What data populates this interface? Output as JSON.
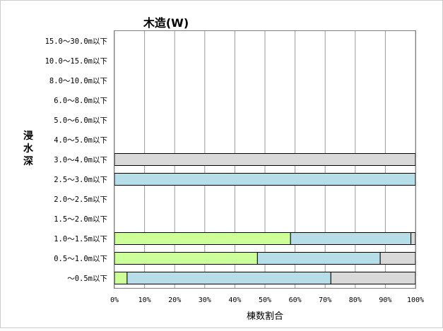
{
  "chart_data": {
    "type": "bar",
    "orientation": "horizontal",
    "stacked": true,
    "title": "木造(W)",
    "ylabel": "浸水深",
    "xlabel": "棟数割合",
    "xlim": [
      0,
      100
    ],
    "x_ticks": [
      "0%",
      "10%",
      "20%",
      "30%",
      "40%",
      "50%",
      "60%",
      "70%",
      "80%",
      "90%",
      "100%"
    ],
    "grid": true,
    "legend": "none",
    "categories": [
      "15.0～30.0m以下",
      "10.0～15.0m以下",
      "8.0～10.0m以下",
      "6.0～8.0m以下",
      "5.0～6.0m以下",
      "4.0～5.0m以下",
      "3.0～4.0m以下",
      "2.5～3.0m以下",
      "2.0～2.5m以下",
      "1.5～2.0m以下",
      "1.0～1.5m以下",
      "0.5～1.0m以下",
      "～0.5m以下"
    ],
    "series": [
      {
        "color": "#ccff99",
        "values": [
          0,
          0,
          0,
          0,
          0,
          0,
          0,
          0,
          0,
          0,
          58.5,
          47.5,
          4.2
        ]
      },
      {
        "color": "#b7dde8",
        "values": [
          0,
          0,
          0,
          0,
          0,
          0,
          0,
          100,
          0,
          0,
          40.0,
          40.8,
          67.7
        ]
      },
      {
        "color": "#d9d9d9",
        "values": [
          0,
          0,
          0,
          0,
          0,
          0,
          100,
          0,
          0,
          0,
          1.5,
          11.7,
          28.1
        ]
      }
    ]
  }
}
